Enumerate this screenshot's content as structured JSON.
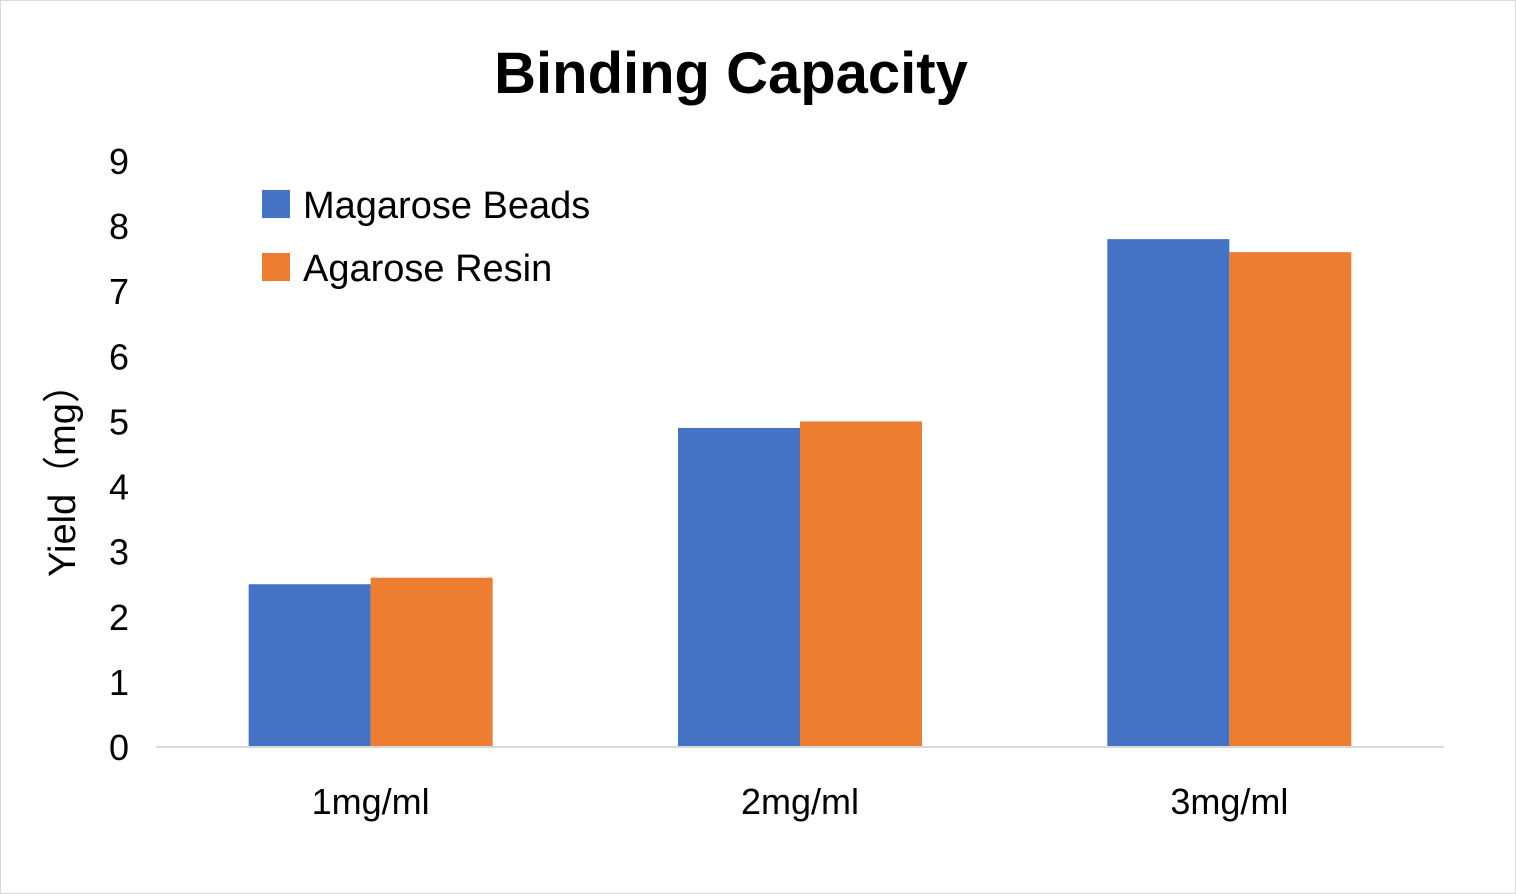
{
  "chart_data": {
    "type": "bar",
    "title": "Binding Capacity",
    "xlabel": "",
    "ylabel": "Yield（mg）",
    "categories": [
      "1mg/ml",
      "2mg/ml",
      "3mg/ml"
    ],
    "series": [
      {
        "name": "Magarose Beads",
        "values": [
          2.5,
          4.9,
          7.8
        ],
        "color": "#4472C4"
      },
      {
        "name": "Agarose Resin",
        "values": [
          2.6,
          5.0,
          7.6
        ],
        "color": "#ED7D31"
      }
    ],
    "ylim": [
      0,
      9
    ],
    "yticks": [
      "0",
      "1",
      "2",
      "3",
      "4",
      "5",
      "6",
      "7",
      "8",
      "9"
    ],
    "grid": false,
    "legend_position": "top-left",
    "axis_color": "#d9d9d9"
  }
}
